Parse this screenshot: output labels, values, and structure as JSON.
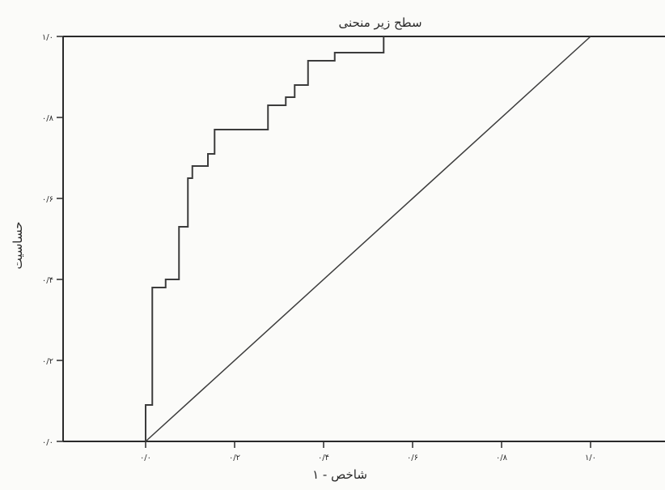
{
  "chart_data": {
    "type": "line",
    "title": "سطح زیر منحنی",
    "xlabel": "شاخص - ۱",
    "ylabel": "حساسیت",
    "xlim": [
      0,
      1
    ],
    "ylim": [
      0,
      1
    ],
    "x_ticks": [
      0,
      0.2,
      0.4,
      0.6,
      0.8,
      1
    ],
    "x_tick_labels": [
      "۰/۰",
      "۰/۲",
      "۰/۴",
      "۰/۶",
      "۰/۸",
      "۱/۰"
    ],
    "y_ticks": [
      0,
      0.2,
      0.4,
      0.6,
      0.8,
      1
    ],
    "y_tick_labels": [
      "۰/۰",
      "۰/۲",
      "۰/۴",
      "۰/۶",
      "۰/۸",
      "۱/۰"
    ],
    "grid": false,
    "series": [
      {
        "style": "step",
        "color": "#3c3c3c",
        "points": [
          [
            0,
            0
          ],
          [
            0,
            0.09
          ],
          [
            0.015,
            0.09
          ],
          [
            0.015,
            0.38
          ],
          [
            0.045,
            0.38
          ],
          [
            0.045,
            0.4
          ],
          [
            0.075,
            0.4
          ],
          [
            0.075,
            0.53
          ],
          [
            0.095,
            0.53
          ],
          [
            0.095,
            0.65
          ],
          [
            0.105,
            0.65
          ],
          [
            0.105,
            0.68
          ],
          [
            0.14,
            0.68
          ],
          [
            0.14,
            0.71
          ],
          [
            0.155,
            0.71
          ],
          [
            0.155,
            0.77
          ],
          [
            0.275,
            0.77
          ],
          [
            0.275,
            0.83
          ],
          [
            0.315,
            0.83
          ],
          [
            0.315,
            0.85
          ],
          [
            0.335,
            0.85
          ],
          [
            0.335,
            0.88
          ],
          [
            0.365,
            0.88
          ],
          [
            0.365,
            0.94
          ],
          [
            0.425,
            0.94
          ],
          [
            0.425,
            0.96
          ],
          [
            0.535,
            0.96
          ],
          [
            0.535,
            1.0
          ]
        ]
      },
      {
        "style": "reference",
        "color": "#3c3c3c",
        "points": [
          [
            0,
            0
          ],
          [
            1,
            1
          ]
        ]
      }
    ]
  },
  "colors": {
    "background": "#fbfbf9",
    "axis": "#2a2a2a",
    "line": "#3c3c3c"
  }
}
